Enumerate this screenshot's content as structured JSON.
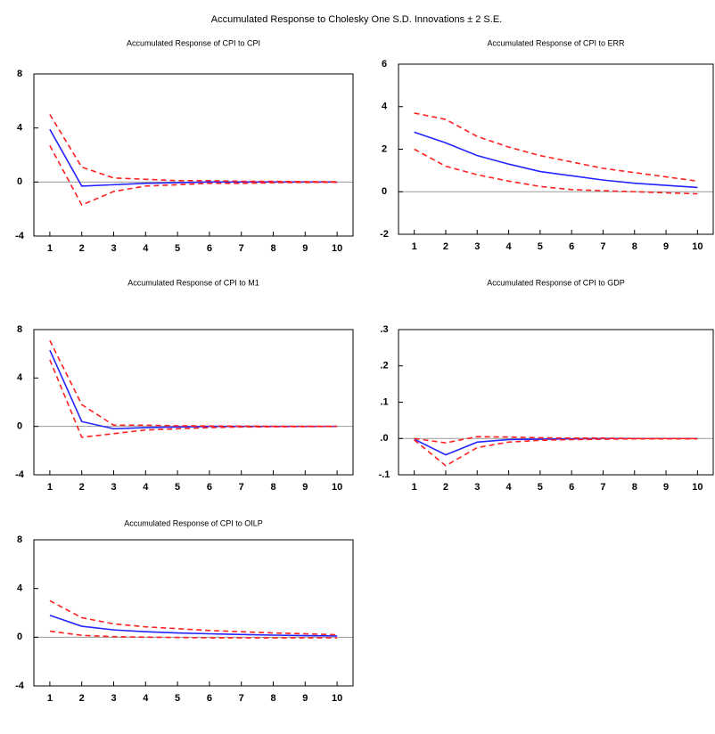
{
  "title": "Accumulated Response to Cholesky One S.D. Innovations ± 2 S.E.",
  "chart_data": [
    {
      "type": "line",
      "title": "Accumulated Response of CPI to CPI",
      "x": [
        1,
        2,
        3,
        4,
        5,
        6,
        7,
        8,
        9,
        10
      ],
      "xlim": [
        0.5,
        10.5
      ],
      "ylim": [
        -4,
        8
      ],
      "yticks": [
        -4,
        0,
        4,
        8
      ],
      "series": [
        {
          "color": "#2424ff",
          "dash": false,
          "values": [
            3.9,
            -0.3,
            -0.2,
            -0.1,
            -0.05,
            0,
            0,
            0,
            0,
            0
          ]
        },
        {
          "color": "#ff2020",
          "dash": true,
          "values": [
            5.0,
            1.1,
            0.3,
            0.2,
            0.1,
            0.1,
            0.05,
            0.05,
            0.03,
            0.02
          ]
        },
        {
          "color": "#ff2020",
          "dash": true,
          "values": [
            2.7,
            -1.7,
            -0.7,
            -0.3,
            -0.2,
            -0.1,
            -0.1,
            -0.05,
            -0.03,
            -0.02
          ]
        }
      ]
    },
    {
      "type": "line",
      "title": "Accumulated Response of CPI to ERR",
      "x": [
        1,
        2,
        3,
        4,
        5,
        6,
        7,
        8,
        9,
        10
      ],
      "xlim": [
        0.5,
        10.5
      ],
      "ylim": [
        -2,
        6
      ],
      "yticks": [
        -2,
        0,
        2,
        4,
        6
      ],
      "series": [
        {
          "color": "#2424ff",
          "dash": false,
          "values": [
            2.8,
            2.3,
            1.7,
            1.3,
            0.95,
            0.75,
            0.55,
            0.4,
            0.3,
            0.2
          ]
        },
        {
          "color": "#ff2020",
          "dash": true,
          "values": [
            3.7,
            3.4,
            2.6,
            2.1,
            1.7,
            1.4,
            1.1,
            0.9,
            0.7,
            0.5
          ]
        },
        {
          "color": "#ff2020",
          "dash": true,
          "values": [
            2.0,
            1.2,
            0.8,
            0.5,
            0.25,
            0.1,
            0.05,
            0,
            -0.05,
            -0.1
          ]
        }
      ]
    },
    {
      "type": "line",
      "title": "Accumulated Response of CPI to M1",
      "x": [
        1,
        2,
        3,
        4,
        5,
        6,
        7,
        8,
        9,
        10
      ],
      "xlim": [
        0.5,
        10.5
      ],
      "ylim": [
        -4,
        8
      ],
      "yticks": [
        -4,
        0,
        4,
        8
      ],
      "series": [
        {
          "color": "#2424ff",
          "dash": false,
          "values": [
            6.3,
            0.4,
            -0.2,
            -0.1,
            -0.05,
            0,
            0,
            0,
            0,
            0
          ]
        },
        {
          "color": "#ff2020",
          "dash": true,
          "values": [
            7.1,
            1.8,
            0.1,
            0.1,
            0.05,
            0.03,
            0.02,
            0.01,
            0.01,
            0.01
          ]
        },
        {
          "color": "#ff2020",
          "dash": true,
          "values": [
            5.5,
            -0.9,
            -0.6,
            -0.3,
            -0.2,
            -0.1,
            -0.05,
            -0.03,
            -0.02,
            -0.01
          ]
        }
      ]
    },
    {
      "type": "line",
      "title": "Accumulated Response of CPI to GDP",
      "x": [
        1,
        2,
        3,
        4,
        5,
        6,
        7,
        8,
        9,
        10
      ],
      "xlim": [
        0.5,
        10.5
      ],
      "ylim": [
        -0.1,
        0.3
      ],
      "yticks": [
        {
          "value": -0.1,
          "label": "-.1"
        },
        {
          "value": 0,
          "label": ".0"
        },
        {
          "value": 0.1,
          "label": ".1"
        },
        {
          "value": 0.2,
          "label": ".2"
        },
        {
          "value": 0.3,
          "label": ".3"
        }
      ],
      "series": [
        {
          "color": "#2424ff",
          "dash": false,
          "values": [
            -0.002,
            -0.045,
            -0.01,
            -0.003,
            -0.002,
            -0.001,
            0,
            0,
            0,
            0
          ]
        },
        {
          "color": "#ff2020",
          "dash": true,
          "values": [
            0,
            -0.012,
            0.005,
            0.004,
            0.002,
            0.001,
            0.001,
            0,
            0,
            0
          ]
        },
        {
          "color": "#ff2020",
          "dash": true,
          "values": [
            -0.004,
            -0.075,
            -0.025,
            -0.01,
            -0.005,
            -0.003,
            -0.002,
            -0.001,
            -0.001,
            -0.001
          ]
        }
      ]
    },
    {
      "type": "line",
      "title": "Accumulated Response of CPI to OILP",
      "x": [
        1,
        2,
        3,
        4,
        5,
        6,
        7,
        8,
        9,
        10
      ],
      "xlim": [
        0.5,
        10.5
      ],
      "ylim": [
        -4,
        8
      ],
      "yticks": [
        -4,
        0,
        4,
        8
      ],
      "series": [
        {
          "color": "#2424ff",
          "dash": false,
          "values": [
            1.8,
            0.9,
            0.6,
            0.45,
            0.35,
            0.28,
            0.22,
            0.17,
            0.13,
            0.1
          ]
        },
        {
          "color": "#ff2020",
          "dash": true,
          "values": [
            3.0,
            1.6,
            1.1,
            0.85,
            0.7,
            0.55,
            0.45,
            0.35,
            0.28,
            0.2
          ]
        },
        {
          "color": "#ff2020",
          "dash": true,
          "values": [
            0.5,
            0.15,
            0.05,
            0,
            -0.02,
            -0.05,
            -0.05,
            -0.05,
            -0.05,
            -0.05
          ]
        }
      ]
    }
  ]
}
